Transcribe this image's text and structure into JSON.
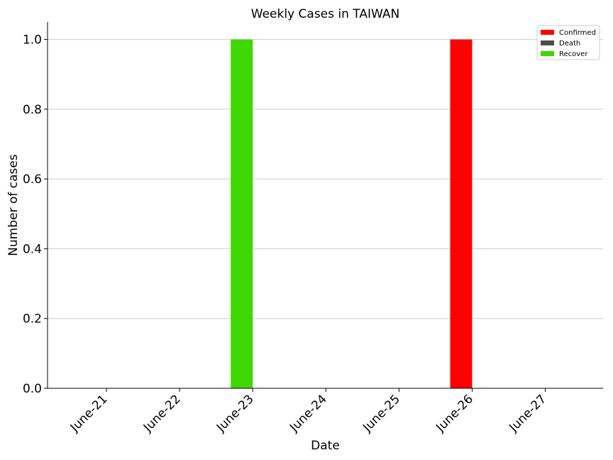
{
  "chart_data": {
    "type": "bar",
    "title": "Weekly Cases in TAIWAN",
    "xlabel": "Date",
    "ylabel": "Number of cases",
    "categories": [
      "June-21",
      "June-22",
      "June-23",
      "June-24",
      "June-25",
      "June-26",
      "June-27"
    ],
    "series": [
      {
        "name": "Confirmed",
        "color": "#ff0000",
        "values": [
          0,
          0,
          0,
          0,
          0,
          1,
          0
        ]
      },
      {
        "name": "Death",
        "color": "#4d4d4d",
        "values": [
          0,
          0,
          0,
          0,
          0,
          0,
          0
        ]
      },
      {
        "name": "Recover",
        "color": "#3fd800",
        "values": [
          0,
          0,
          1,
          0,
          0,
          0,
          0
        ]
      }
    ],
    "ylim": [
      0,
      1.05
    ],
    "yticks": [
      "0.0",
      "0.2",
      "0.4",
      "0.6",
      "0.8",
      "1.0"
    ],
    "grid": "horizontal",
    "legend_position": "top-right"
  }
}
